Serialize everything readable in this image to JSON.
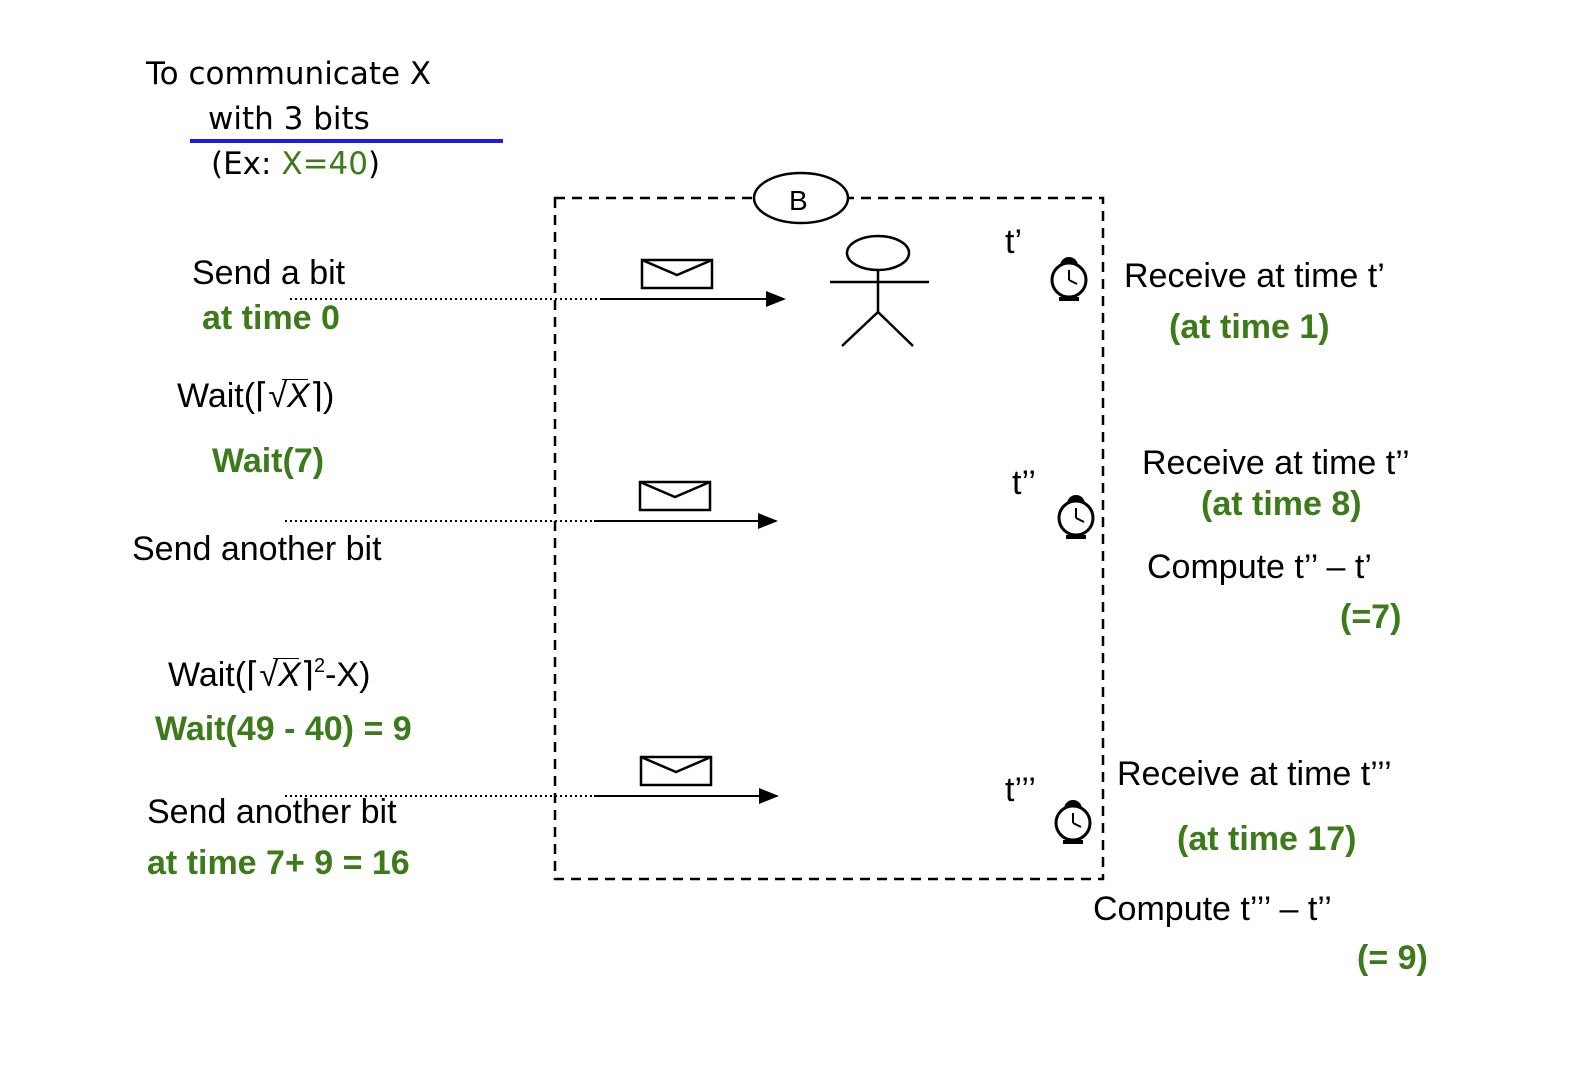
{
  "header": {
    "line1": "To communicate X",
    "line2": "with 3 bits",
    "example_open": "(Ex: ",
    "example_value": "X=40",
    "example_close": ")"
  },
  "box_label": "B",
  "sender": {
    "send_bit": "Send a bit",
    "at_time_0": "at time 0",
    "wait_prefix": "Wait(",
    "wait_x": "X",
    "wait_suffix": ")",
    "wait_7": "Wait(7)",
    "send_another_1": "Send another bit",
    "wait2_prefix": "Wait(",
    "wait2_x": "X",
    "wait2_exp": "2",
    "wait2_suffix": "-X)",
    "wait_9": "Wait(49 - 40) = 9",
    "send_another_2": "Send another bit",
    "at_time_16": "at time  7+ 9 = 16"
  },
  "receiver": {
    "t1": "t’",
    "t2": "t’’",
    "t3": "t’’’",
    "recv1": "Receive at time t’",
    "recv1_green": "(at time 1)",
    "recv2": "Receive at time t’’",
    "recv2_green": "(at time 8)",
    "compute1": "Compute t’’ – t’",
    "compute1_green": "(=7)",
    "recv3": "Receive at time t’’’",
    "recv3_green": "(at time 17)",
    "compute2": "Compute  t’’’ – t’’",
    "compute2_green": "(= 9)"
  },
  "colors": {
    "green": "#3c7a1a",
    "blue_underline": "#1a1aee"
  }
}
